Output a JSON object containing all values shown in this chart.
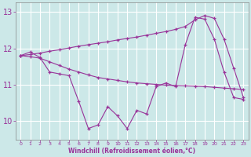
{
  "x": [
    0,
    1,
    2,
    3,
    4,
    5,
    6,
    7,
    8,
    9,
    10,
    11,
    12,
    13,
    14,
    15,
    16,
    17,
    18,
    19,
    20,
    21,
    22,
    23
  ],
  "line1": [
    11.8,
    11.9,
    11.75,
    11.35,
    11.3,
    11.25,
    10.55,
    9.8,
    9.9,
    10.4,
    10.15,
    9.8,
    10.3,
    10.2,
    10.95,
    11.05,
    10.95,
    12.1,
    12.85,
    12.8,
    12.25,
    11.35,
    10.65,
    10.6
  ],
  "line2": [
    11.8,
    11.83,
    11.87,
    11.92,
    11.96,
    12.01,
    12.06,
    12.1,
    12.14,
    12.18,
    12.23,
    12.27,
    12.31,
    12.36,
    12.41,
    12.46,
    12.52,
    12.6,
    12.78,
    12.9,
    12.82,
    12.25,
    11.45,
    10.65
  ],
  "line3": [
    11.8,
    11.77,
    11.73,
    11.63,
    11.53,
    11.43,
    11.35,
    11.27,
    11.2,
    11.16,
    11.12,
    11.08,
    11.05,
    11.03,
    11.01,
    10.99,
    10.98,
    10.97,
    10.96,
    10.95,
    10.93,
    10.91,
    10.89,
    10.87
  ],
  "line_color": "#993399",
  "bg_color": "#cce8e8",
  "grid_color": "#b0d8d8",
  "xlabel": "Windchill (Refroidissement éolien,°C)",
  "yticks": [
    10,
    11,
    12,
    13
  ],
  "xticks": [
    0,
    1,
    2,
    3,
    4,
    5,
    6,
    7,
    8,
    9,
    10,
    11,
    12,
    13,
    14,
    15,
    16,
    17,
    18,
    19,
    20,
    21,
    22,
    23
  ],
  "ylim": [
    9.5,
    13.25
  ],
  "xlim": [
    -0.5,
    23.5
  ]
}
